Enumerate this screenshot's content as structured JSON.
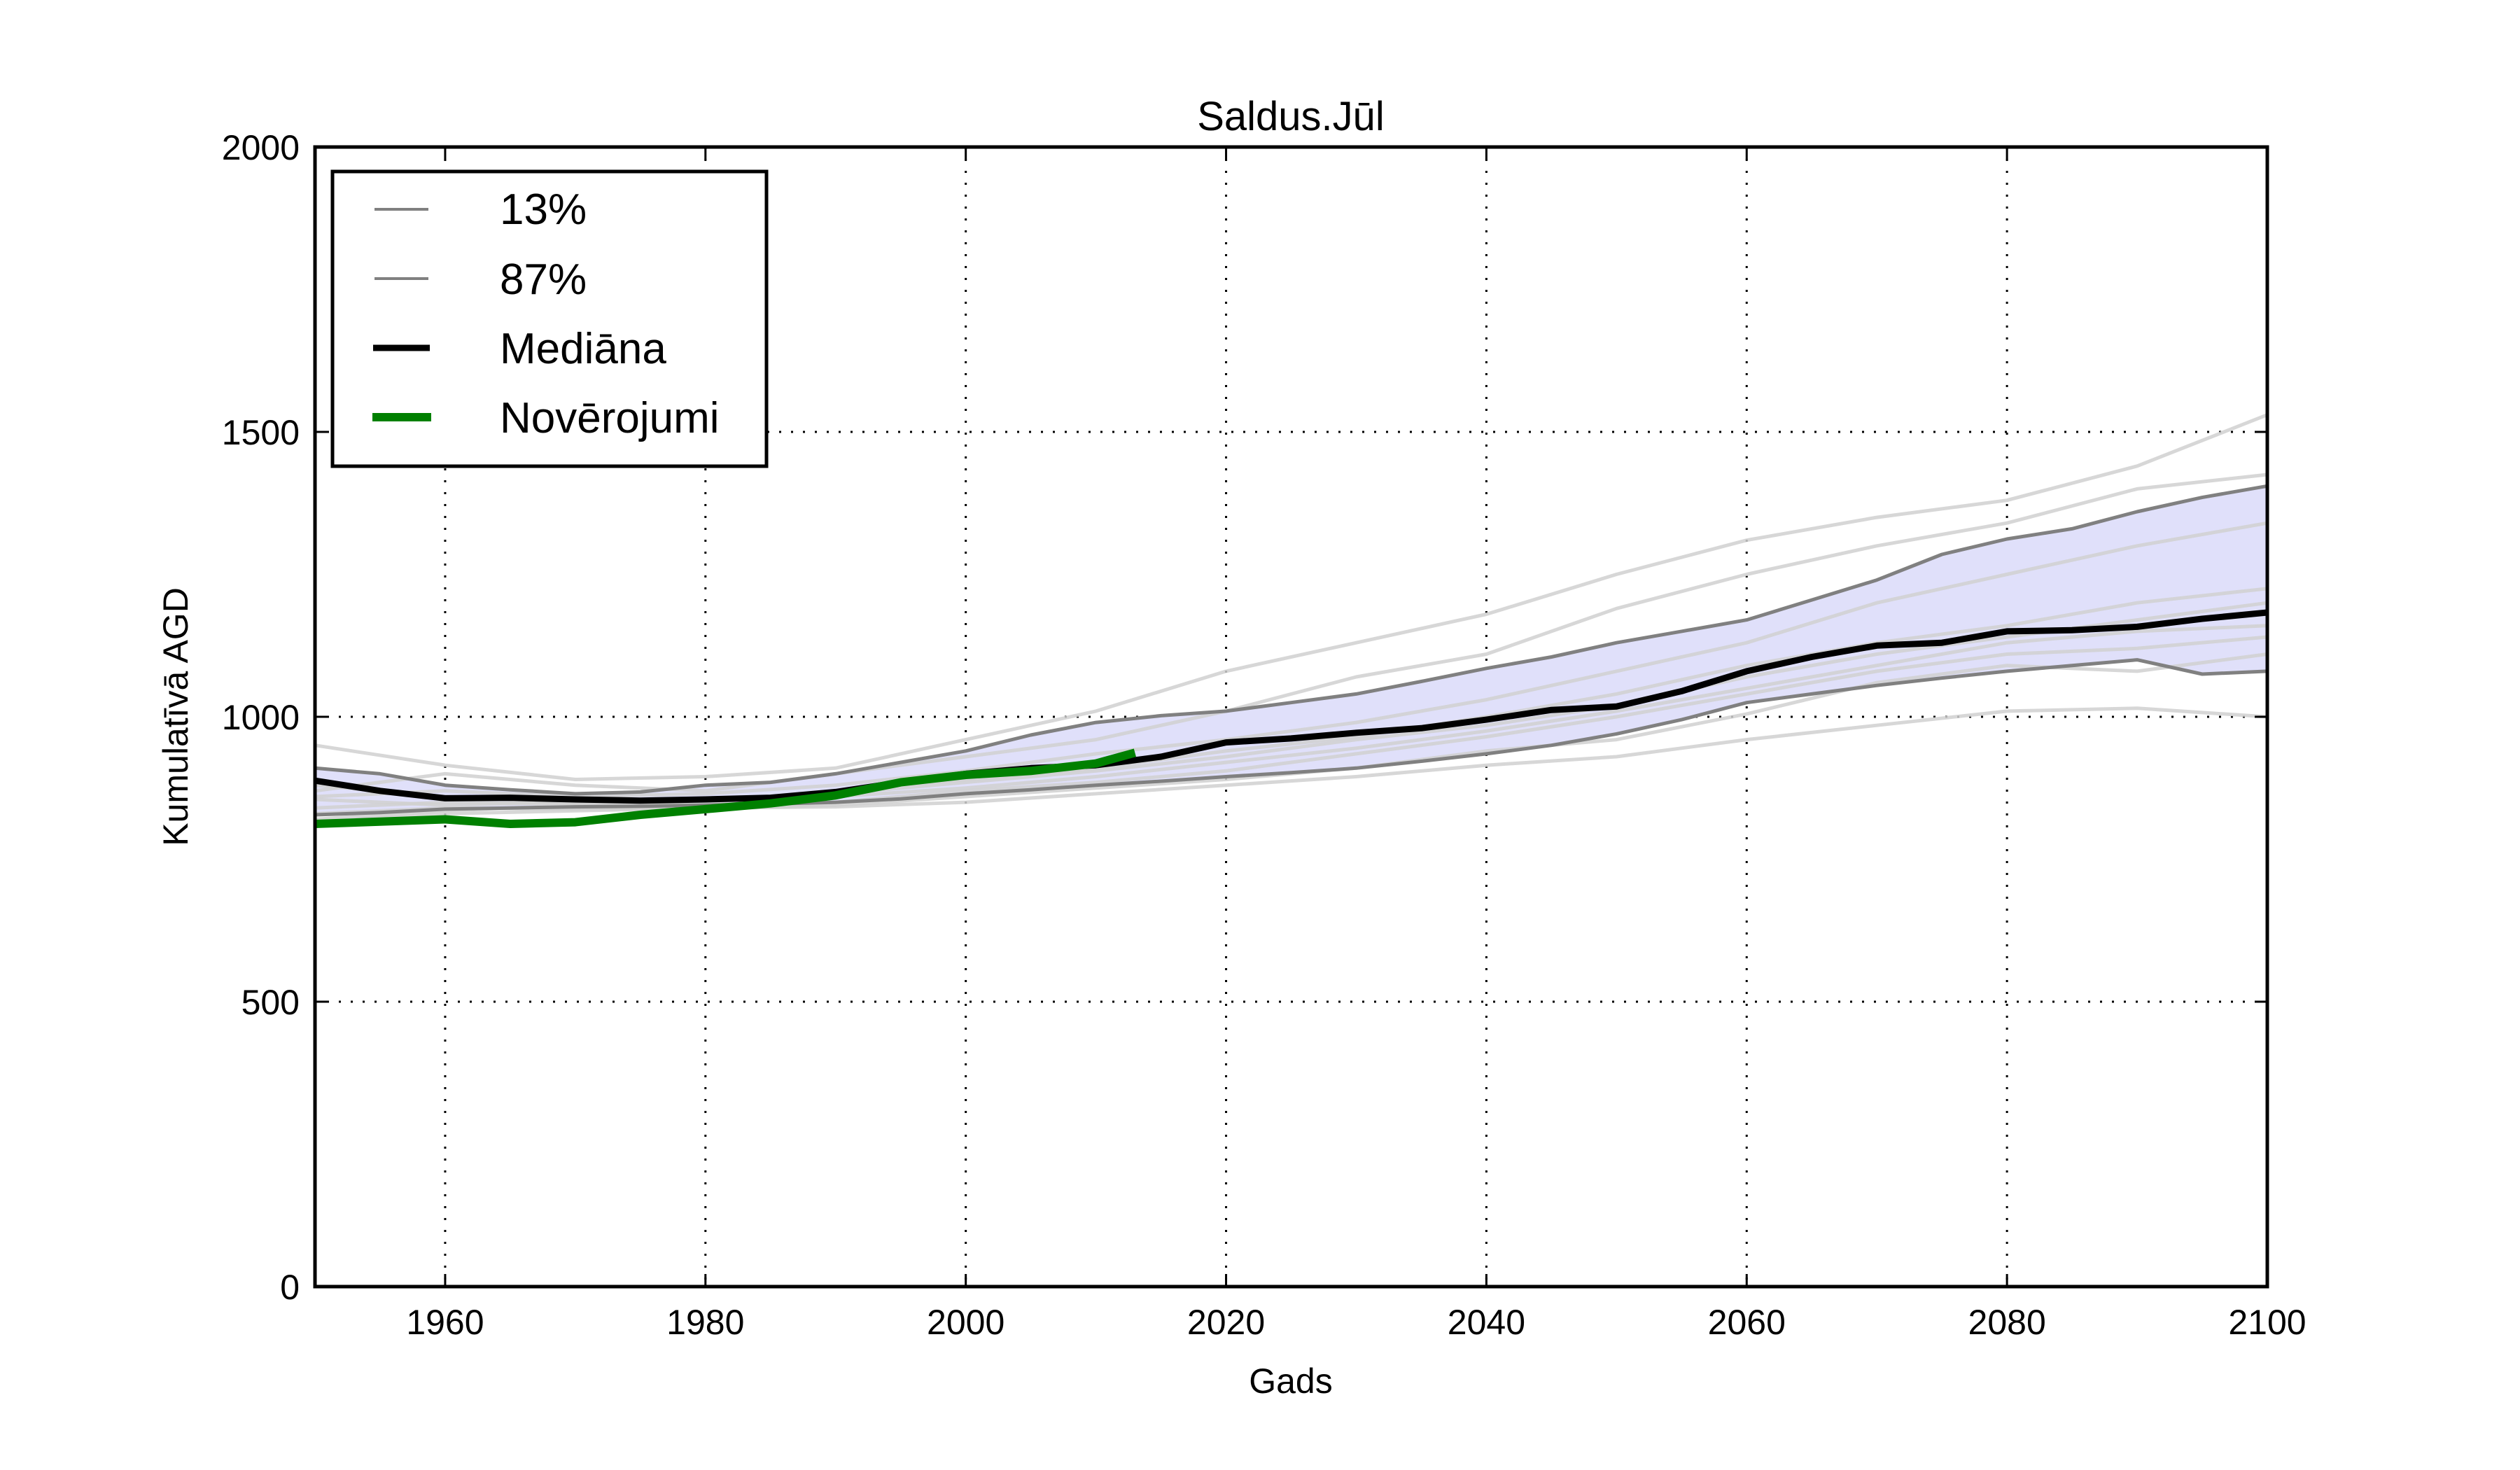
{
  "chart_data": {
    "type": "line",
    "title": "Saldus.Jūl",
    "xlabel": "Gads",
    "ylabel": "Kumulatīvā AGD",
    "xlim": [
      1950,
      2100
    ],
    "ylim": [
      0,
      2000
    ],
    "xticks": [
      1960,
      1980,
      2000,
      2020,
      2040,
      2060,
      2080,
      2100
    ],
    "yticks": [
      0,
      500,
      1000,
      1500,
      2000
    ],
    "grid": true,
    "legend_position": "top-left",
    "legend": [
      {
        "label": "13%",
        "series": "p13"
      },
      {
        "label": "87%",
        "series": "p87"
      },
      {
        "label": "Mediāna",
        "series": "median"
      },
      {
        "label": "Novērojumi",
        "series": "obs"
      }
    ],
    "colors": {
      "band_fill": "#e0e0fa",
      "percentile": "#808080",
      "median": "#000000",
      "obs": "#008000",
      "ensemble": "#d0d0d0"
    },
    "series": [
      {
        "name": "13%",
        "key": "p13",
        "x": [
          1950,
          1955,
          1960,
          1965,
          1970,
          1975,
          1980,
          1985,
          1990,
          1995,
          2000,
          2005,
          2010,
          2015,
          2020,
          2025,
          2030,
          2035,
          2040,
          2045,
          2050,
          2055,
          2060,
          2065,
          2070,
          2075,
          2080,
          2085,
          2090,
          2095,
          2100
        ],
        "values": [
          828,
          832,
          838,
          840,
          842,
          843,
          845,
          847,
          850,
          856,
          865,
          872,
          880,
          887,
          895,
          902,
          910,
          922,
          935,
          950,
          970,
          995,
          1025,
          1040,
          1055,
          1068,
          1080,
          1090,
          1100,
          1075,
          1080
        ]
      },
      {
        "name": "87%",
        "key": "p87",
        "x": [
          1950,
          1955,
          1960,
          1965,
          1970,
          1975,
          1980,
          1985,
          1990,
          1995,
          2000,
          2005,
          2010,
          2015,
          2020,
          2025,
          2030,
          2035,
          2040,
          2045,
          2050,
          2055,
          2060,
          2065,
          2070,
          2075,
          2080,
          2085,
          2090,
          2095,
          2100
        ],
        "values": [
          910,
          900,
          880,
          872,
          865,
          868,
          880,
          885,
          900,
          920,
          940,
          968,
          990,
          1002,
          1010,
          1025,
          1040,
          1062,
          1085,
          1105,
          1130,
          1150,
          1170,
          1205,
          1240,
          1285,
          1312,
          1330,
          1360,
          1385,
          1405
        ]
      },
      {
        "name": "Mediāna",
        "key": "median",
        "x": [
          1950,
          1955,
          1960,
          1965,
          1970,
          1975,
          1980,
          1985,
          1990,
          1995,
          2000,
          2005,
          2010,
          2015,
          2020,
          2025,
          2030,
          2035,
          2040,
          2045,
          2050,
          2055,
          2060,
          2065,
          2070,
          2075,
          2080,
          2085,
          2090,
          2095,
          2100
        ],
        "values": [
          888,
          870,
          857,
          858,
          855,
          853,
          855,
          858,
          868,
          885,
          900,
          910,
          915,
          930,
          955,
          962,
          972,
          980,
          995,
          1012,
          1018,
          1045,
          1080,
          1105,
          1125,
          1130,
          1150,
          1152,
          1158,
          1172,
          1183
        ]
      },
      {
        "name": "Novērojumi",
        "key": "obs",
        "x": [
          1950,
          1955,
          1960,
          1965,
          1970,
          1975,
          1980,
          1985,
          1990,
          1995,
          2000,
          2005,
          2010,
          2013
        ],
        "values": [
          812,
          816,
          820,
          812,
          815,
          828,
          838,
          848,
          862,
          885,
          898,
          905,
          918,
          937
        ]
      }
    ],
    "ensemble": [
      {
        "x": [
          1950,
          1960,
          1970,
          1980,
          1990,
          2000,
          2010,
          2020,
          2030,
          2040,
          2050,
          2060,
          2070,
          2080,
          2090,
          2100
        ],
        "values": [
          950,
          915,
          890,
          895,
          910,
          960,
          1010,
          1080,
          1130,
          1180,
          1250,
          1310,
          1350,
          1380,
          1440,
          1530
        ]
      },
      {
        "x": [
          1950,
          1960,
          1970,
          1980,
          1990,
          2000,
          2010,
          2020,
          2030,
          2040,
          2050,
          2060,
          2070,
          2080,
          2090,
          2100
        ],
        "values": [
          870,
          900,
          880,
          870,
          900,
          930,
          960,
          1010,
          1070,
          1110,
          1190,
          1250,
          1300,
          1340,
          1400,
          1425
        ]
      },
      {
        "x": [
          1950,
          1960,
          1970,
          1980,
          1990,
          2000,
          2010,
          2020,
          2030,
          2040,
          2050,
          2060,
          2070,
          2080,
          2090,
          2100
        ],
        "values": [
          860,
          870,
          860,
          865,
          880,
          905,
          935,
          960,
          990,
          1030,
          1080,
          1130,
          1200,
          1250,
          1300,
          1340
        ]
      },
      {
        "x": [
          1950,
          1960,
          1970,
          1980,
          1990,
          2000,
          2010,
          2020,
          2030,
          2040,
          2050,
          2060,
          2070,
          2080,
          2090,
          2100
        ],
        "values": [
          880,
          860,
          850,
          850,
          870,
          890,
          910,
          940,
          965,
          1000,
          1040,
          1090,
          1130,
          1160,
          1200,
          1225
        ]
      },
      {
        "x": [
          1950,
          1960,
          1970,
          1980,
          1990,
          2000,
          2010,
          2020,
          2030,
          2040,
          2050,
          2060,
          2070,
          2080,
          2090,
          2100
        ],
        "values": [
          840,
          850,
          848,
          855,
          865,
          885,
          905,
          930,
          960,
          985,
          1020,
          1070,
          1110,
          1140,
          1170,
          1200
        ]
      },
      {
        "x": [
          1950,
          1960,
          1970,
          1980,
          1990,
          2000,
          2010,
          2020,
          2030,
          2040,
          2050,
          2060,
          2070,
          2080,
          2090,
          2100
        ],
        "values": [
          855,
          845,
          850,
          845,
          860,
          875,
          895,
          920,
          945,
          975,
          1010,
          1050,
          1090,
          1130,
          1150,
          1160
        ]
      },
      {
        "x": [
          1950,
          1960,
          1970,
          1980,
          1990,
          2000,
          2010,
          2020,
          2030,
          2040,
          2050,
          2060,
          2070,
          2080,
          2090,
          2100
        ],
        "values": [
          830,
          840,
          838,
          842,
          850,
          870,
          885,
          905,
          935,
          965,
          1000,
          1040,
          1080,
          1110,
          1120,
          1140
        ]
      },
      {
        "x": [
          1950,
          1960,
          1970,
          1980,
          1990,
          2000,
          2010,
          2020,
          2030,
          2040,
          2050,
          2060,
          2070,
          2080,
          2090,
          2100
        ],
        "values": [
          820,
          835,
          845,
          838,
          845,
          860,
          875,
          890,
          910,
          940,
          960,
          1005,
          1060,
          1090,
          1080,
          1110
        ]
      },
      {
        "x": [
          1950,
          1960,
          1970,
          1980,
          1990,
          2000,
          2010,
          2020,
          2030,
          2040,
          2050,
          2060,
          2070,
          2080,
          2090,
          2100
        ],
        "values": [
          815,
          830,
          835,
          840,
          842,
          850,
          865,
          880,
          895,
          915,
          930,
          960,
          985,
          1010,
          1015,
          1000
        ]
      }
    ]
  }
}
